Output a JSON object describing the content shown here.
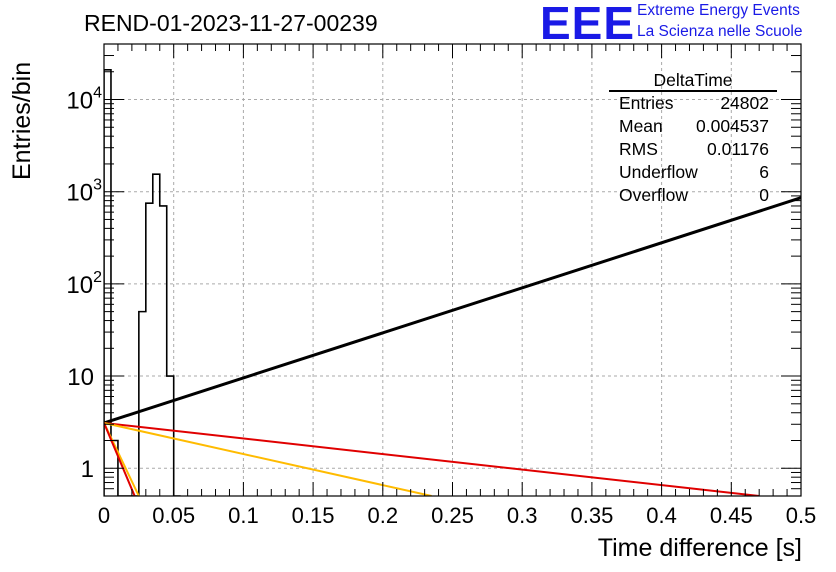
{
  "title": "REND-01-2023-11-27-00239",
  "logo": {
    "mark": "EEE",
    "line1": "Extreme Energy Events",
    "line2": "La Scienza nelle Scuole"
  },
  "stats": {
    "name": "DeltaTime",
    "rows": [
      {
        "label": "Entries",
        "value": "24802"
      },
      {
        "label": "Mean",
        "value": "0.004537"
      },
      {
        "label": "RMS",
        "value": "0.01176"
      },
      {
        "label": "Underflow",
        "value": "6"
      },
      {
        "label": "Overflow",
        "value": "0"
      }
    ]
  },
  "chart_data": {
    "type": "histogram",
    "xlabel": "Time difference [s]",
    "ylabel": "Entries/bin",
    "xlim": [
      0,
      0.5
    ],
    "ylim": [
      0.5,
      40000
    ],
    "yscale": "log",
    "grid": true,
    "xticks": [
      "0",
      "0.05",
      "0.1",
      "0.15",
      "0.2",
      "0.25",
      "0.3",
      "0.35",
      "0.4",
      "0.45",
      "0.5"
    ],
    "yticks": [
      {
        "value": 1,
        "base": "1",
        "exp": ""
      },
      {
        "value": 10,
        "base": "10",
        "exp": ""
      },
      {
        "value": 100,
        "base": "10",
        "exp": "2"
      },
      {
        "value": 1000,
        "base": "10",
        "exp": "3"
      },
      {
        "value": 10000,
        "base": "10",
        "exp": "4"
      }
    ],
    "histogram": {
      "color": "#000000",
      "bin_edges": [
        0,
        0.005,
        0.01,
        0.015,
        0.02,
        0.025,
        0.03,
        0.035,
        0.04,
        0.045,
        0.05,
        0.055
      ],
      "counts": [
        21000,
        2,
        0.5,
        0.5,
        0.5,
        50,
        750,
        1550,
        700,
        10,
        0.5
      ]
    },
    "fits": [
      {
        "color": "#000000",
        "points": [
          [
            0,
            3.1
          ],
          [
            0.5,
            860
          ]
        ]
      },
      {
        "color": "#e00000",
        "points": [
          [
            0,
            3.1
          ],
          [
            0.47,
            0.5
          ]
        ]
      },
      {
        "color": "#ffbb00",
        "points": [
          [
            0,
            3.1
          ],
          [
            0.235,
            0.5
          ]
        ]
      },
      {
        "color": "#ffbb00",
        "points": [
          [
            0,
            3.1
          ],
          [
            0.025,
            0.5
          ]
        ]
      },
      {
        "color": "#e00000",
        "points": [
          [
            0,
            3.1
          ],
          [
            0.022,
            0.5
          ]
        ]
      }
    ]
  }
}
